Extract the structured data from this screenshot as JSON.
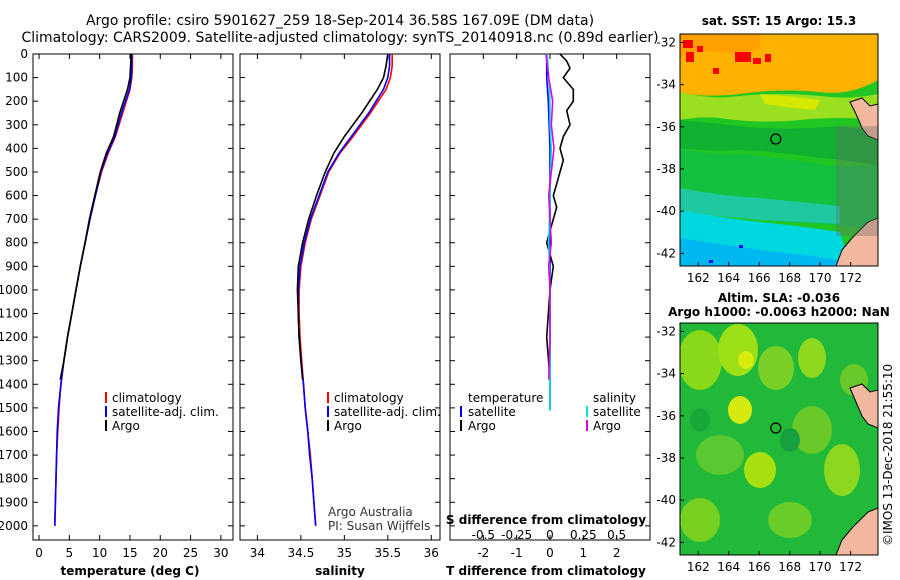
{
  "header": {
    "line1": "Argo profile: csiro 5901627_259 18-Sep-2014 36.58S 167.09E (DM data)",
    "line2": "Climatology: CARS2009. Satellite-adjusted climatology: synTS_20140918.nc (0.89d earlier)"
  },
  "colors": {
    "climatology": "#ff0000",
    "satellite": "#0000ff",
    "argo": "#000000",
    "s_satellite": "#00e5e5",
    "s_argo": "#e000e0"
  },
  "chart_data": [
    {
      "type": "line",
      "id": "temperature-profile",
      "xlabel": "temperature (deg C)",
      "ylabel": "",
      "xlim": [
        -1,
        32
      ],
      "ylim": [
        0,
        2060
      ],
      "x_ticks": [
        0,
        5,
        10,
        15,
        20,
        25,
        30
      ],
      "y_ticks": [
        0,
        100,
        200,
        300,
        400,
        500,
        600,
        700,
        800,
        900,
        1000,
        1100,
        1200,
        1300,
        1400,
        1500,
        1600,
        1700,
        1800,
        1900,
        2000
      ],
      "y_tick_labels": [
        "0",
        "100",
        "200",
        "300",
        "400",
        "500",
        "600",
        "700",
        "800",
        "900",
        "1000",
        "1100",
        "1200",
        "1300",
        "1400",
        "1500",
        "1600",
        "1700",
        "1800",
        "1900",
        "2000"
      ],
      "legend": [
        "climatology",
        "satellite-adj. clim.",
        "Argo"
      ],
      "series": [
        {
          "name": "climatology",
          "color_key": "climatology",
          "x": [
            15.4,
            15.4,
            15.3,
            15.0,
            13.8,
            12.6,
            11.4,
            10.3,
            9.3,
            8.4,
            7.6,
            6.8,
            6.1,
            5.4,
            4.7,
            4.1,
            3.6,
            3.3,
            3.1,
            2.9,
            2.8,
            2.7,
            2.6,
            2.6
          ],
          "y": [
            0,
            50,
            100,
            150,
            250,
            350,
            420,
            500,
            600,
            700,
            800,
            900,
            1000,
            1100,
            1200,
            1300,
            1400,
            1500,
            1600,
            1700,
            1800,
            1900,
            2000,
            2000
          ]
        },
        {
          "name": "satellite-adj. clim.",
          "color_key": "satellite",
          "x": [
            15.3,
            15.3,
            15.2,
            14.9,
            13.6,
            12.5,
            11.3,
            10.2,
            9.3,
            8.4,
            7.6,
            6.8,
            6.1,
            5.4,
            4.7,
            4.1,
            3.6,
            3.2,
            3.0,
            2.9,
            2.8,
            2.7,
            2.6
          ],
          "y": [
            0,
            50,
            100,
            150,
            250,
            350,
            420,
            500,
            600,
            700,
            800,
            900,
            1000,
            1100,
            1200,
            1300,
            1400,
            1500,
            1600,
            1700,
            1800,
            1900,
            2000
          ]
        },
        {
          "name": "Argo",
          "color_key": "argo",
          "x": [
            15.2,
            15.1,
            15.0,
            14.6,
            13.3,
            12.3,
            11.1,
            10.1,
            9.2,
            8.3,
            7.6,
            6.8,
            6.1,
            5.4,
            4.7,
            4.1,
            3.5
          ],
          "y": [
            0,
            50,
            100,
            150,
            250,
            350,
            420,
            500,
            600,
            700,
            800,
            900,
            1000,
            1100,
            1200,
            1300,
            1380
          ]
        }
      ]
    },
    {
      "type": "line",
      "id": "salinity-profile",
      "xlabel": "salinity",
      "xlim": [
        33.8,
        36.1
      ],
      "ylim": [
        0,
        2060
      ],
      "x_ticks": [
        34,
        34.5,
        35,
        35.5,
        36
      ],
      "x_tick_labels": [
        "34",
        "34.5",
        "35",
        "35.5",
        "36"
      ],
      "legend": [
        "climatology",
        "satellite-adj. clim.",
        "Argo"
      ],
      "annotations": [
        "Argo Australia",
        "PI: Susan Wijffels"
      ],
      "series": [
        {
          "name": "climatology",
          "color_key": "climatology",
          "x": [
            35.55,
            35.55,
            35.53,
            35.48,
            35.3,
            35.1,
            34.95,
            34.82,
            34.72,
            34.62,
            34.55,
            34.5,
            34.48,
            34.48,
            34.49,
            34.51,
            34.53,
            34.55,
            34.58,
            34.61,
            34.63,
            34.65,
            34.67
          ],
          "y": [
            0,
            50,
            100,
            150,
            250,
            350,
            420,
            500,
            600,
            700,
            800,
            900,
            1000,
            1100,
            1200,
            1300,
            1400,
            1500,
            1600,
            1700,
            1800,
            1900,
            2000
          ]
        },
        {
          "name": "satellite-adj. clim.",
          "color_key": "satellite",
          "x": [
            35.52,
            35.52,
            35.5,
            35.45,
            35.28,
            35.08,
            34.94,
            34.81,
            34.71,
            34.61,
            34.54,
            34.49,
            34.47,
            34.47,
            34.48,
            34.5,
            34.53,
            34.55,
            34.58,
            34.6,
            34.63,
            34.65,
            34.67
          ],
          "y": [
            0,
            50,
            100,
            150,
            250,
            350,
            420,
            500,
            600,
            700,
            800,
            900,
            1000,
            1100,
            1200,
            1300,
            1400,
            1500,
            1600,
            1700,
            1800,
            1900,
            2000
          ]
        },
        {
          "name": "Argo",
          "color_key": "argo",
          "x": [
            35.5,
            35.48,
            35.45,
            35.38,
            35.2,
            35.0,
            34.88,
            34.78,
            34.68,
            34.59,
            34.52,
            34.47,
            34.46,
            34.47,
            34.48,
            34.5,
            34.52
          ],
          "y": [
            0,
            50,
            100,
            150,
            250,
            350,
            420,
            500,
            600,
            700,
            800,
            900,
            1000,
            1100,
            1200,
            1300,
            1380
          ]
        }
      ]
    },
    {
      "type": "line",
      "id": "difference-profile",
      "xlabel": "T difference from climatology",
      "x2label": "S difference from climatology",
      "xlim": [
        -3,
        3
      ],
      "x2lim": [
        -0.75,
        0.75
      ],
      "ylim": [
        0,
        2060
      ],
      "x_ticks": [
        -2,
        -1,
        0,
        1,
        2
      ],
      "x_tick_labels": [
        "-2",
        "-1",
        "0",
        "1",
        "2"
      ],
      "x2_ticks": [
        -0.5,
        -0.25,
        0,
        0.25,
        0.5
      ],
      "x2_tick_labels": [
        "-0.5",
        "-0.25",
        "0",
        "0.25",
        "0.5"
      ],
      "legend_temperature": {
        "title": "temperature",
        "entries": [
          "satellite",
          "Argo"
        ]
      },
      "legend_salinity": {
        "title": "salinity",
        "entries": [
          "satellite",
          "Argo"
        ]
      },
      "series": [
        {
          "name": "T satellite",
          "color_key": "satellite",
          "axis": "x",
          "x": [
            -0.1,
            -0.1,
            -0.05,
            0.0,
            0.0,
            0.0,
            0.0,
            0.0,
            0.0,
            0.0,
            0.0
          ],
          "y": [
            0,
            100,
            200,
            400,
            600,
            800,
            1000,
            1200,
            1400,
            1500,
            1510
          ]
        },
        {
          "name": "T Argo",
          "color_key": "argo",
          "axis": "x",
          "x": [
            0.3,
            0.5,
            0.6,
            0.4,
            0.7,
            0.7,
            0.5,
            0.6,
            0.4,
            0.3,
            0.4,
            0.3,
            0.2,
            0.1,
            0.2,
            0.1,
            0.0,
            -0.1,
            0.0,
            0.1,
            0.0,
            -0.1,
            0.0
          ],
          "y": [
            0,
            30,
            60,
            100,
            150,
            200,
            240,
            300,
            350,
            400,
            450,
            500,
            550,
            600,
            650,
            700,
            750,
            800,
            850,
            900,
            1000,
            1200,
            1380
          ]
        },
        {
          "name": "S satellite",
          "color_key": "s_satellite",
          "axis": "x2",
          "x": [
            -0.02,
            -0.01,
            0.0,
            0.0,
            0.01,
            0.0,
            -0.01,
            0.0,
            0.0,
            0.0,
            0.0,
            0.0
          ],
          "y": [
            0,
            100,
            200,
            300,
            400,
            600,
            800,
            1000,
            1200,
            1400,
            1500,
            1510
          ]
        },
        {
          "name": "S Argo",
          "color_key": "s_argo",
          "axis": "x2",
          "x": [
            -0.03,
            -0.01,
            0.02,
            0.01,
            0.03,
            0.01,
            -0.01,
            0.0,
            0.01,
            -0.01,
            0.0,
            0.0,
            -0.01
          ],
          "y": [
            0,
            100,
            200,
            300,
            400,
            500,
            600,
            700,
            800,
            900,
            1000,
            1200,
            1380
          ]
        }
      ]
    },
    {
      "type": "heatmap",
      "id": "sst-map",
      "title": "sat. SST: 15 Argo: 15.3",
      "x_ticks": [
        162,
        164,
        166,
        168,
        170,
        172
      ],
      "y_ticks": [
        -32,
        -34,
        -36,
        -38,
        -40,
        -42
      ],
      "xlim": [
        160.8,
        173.8
      ],
      "ylim": [
        -42.6,
        -31.6
      ],
      "marker": {
        "lon": 167.09,
        "lat": -36.58
      }
    },
    {
      "type": "heatmap",
      "id": "sla-map",
      "title": "Altim. SLA: -0.036",
      "subtitle": "Argo h1000: -0.0063 h2000: NaN",
      "x_ticks": [
        162,
        164,
        166,
        168,
        170,
        172
      ],
      "y_ticks": [
        -32,
        -34,
        -36,
        -38,
        -40,
        -42
      ],
      "xlim": [
        160.8,
        173.8
      ],
      "ylim": [
        -42.6,
        -31.6
      ],
      "marker": {
        "lon": 167.09,
        "lat": -36.58
      }
    }
  ],
  "footer": {
    "credit": "©IMOS 13-Dec-2018 21:55:10"
  }
}
